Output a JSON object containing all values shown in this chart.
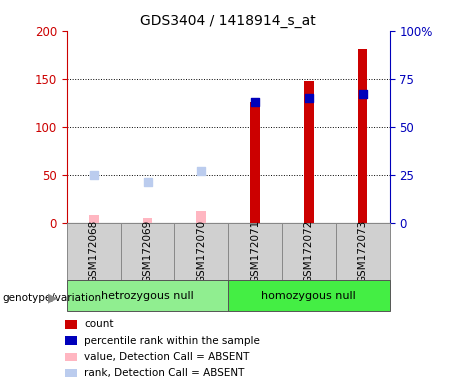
{
  "title": "GDS3404 / 1418914_s_at",
  "categories": [
    "GSM172068",
    "GSM172069",
    "GSM172070",
    "GSM172071",
    "GSM172072",
    "GSM172073"
  ],
  "red_bars": [
    0,
    0,
    0,
    126,
    148,
    181
  ],
  "blue_squares_pct": [
    null,
    null,
    null,
    63,
    65,
    67
  ],
  "pink_bars": [
    8,
    5,
    12,
    0,
    0,
    3
  ],
  "lavender_squares_pct": [
    25,
    21,
    27,
    null,
    null,
    null
  ],
  "ylim_left": [
    0,
    200
  ],
  "ylim_right": [
    0,
    100
  ],
  "left_yticks": [
    0,
    50,
    100,
    150,
    200
  ],
  "right_yticks": [
    0,
    25,
    50,
    75,
    100
  ],
  "left_ytick_labels": [
    "0",
    "50",
    "100",
    "150",
    "200"
  ],
  "right_ytick_labels": [
    "0",
    "25",
    "50",
    "75",
    "100%"
  ],
  "left_axis_color": "#CC0000",
  "right_axis_color": "#0000BB",
  "grid_dotted_values": [
    50,
    100,
    150
  ],
  "bar_width": 0.18,
  "legend_items": [
    {
      "color": "#CC0000",
      "label": "count"
    },
    {
      "color": "#0000BB",
      "label": "percentile rank within the sample"
    },
    {
      "color": "#FFB6C1",
      "label": "value, Detection Call = ABSENT"
    },
    {
      "color": "#BBCCEE",
      "label": "rank, Detection Call = ABSENT"
    }
  ],
  "group1_label": "hetrozygous null",
  "group2_label": "homozygous null",
  "group1_color": "#90EE90",
  "group2_color": "#44EE44",
  "genotype_label": "genotype/variation"
}
